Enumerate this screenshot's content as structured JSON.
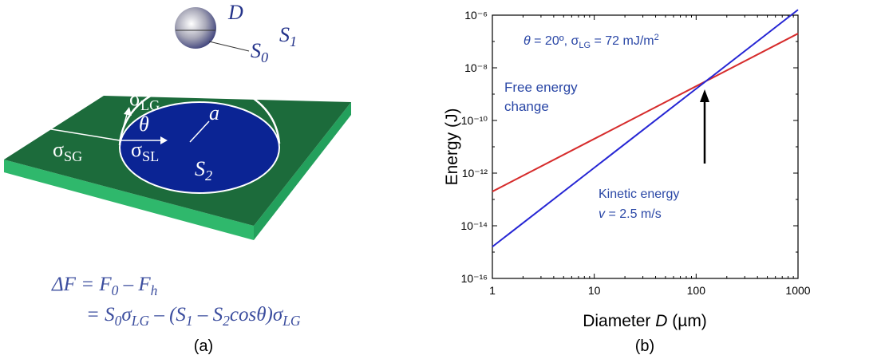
{
  "panel_a": {
    "caption": "(a)",
    "labels": {
      "D": [
        "D"
      ],
      "S0": [
        "S",
        "0"
      ],
      "S1": [
        "S",
        "1"
      ],
      "sigma_LG": [
        "σ",
        "LG"
      ],
      "theta": [
        "θ"
      ],
      "a": [
        "a"
      ],
      "sigma_SG": [
        "σ",
        "SG"
      ],
      "sigma_SL": [
        "σ",
        "SL"
      ],
      "S2": [
        "S",
        "2"
      ]
    },
    "equation": [
      [
        "ΔF = F",
        "0",
        " – F",
        "h"
      ],
      [
        "= S",
        "0",
        "σ",
        "LG",
        " – (S",
        "1",
        " – S",
        "2",
        "cosθ)σ",
        "LG"
      ]
    ]
  },
  "chart_data": {
    "type": "line",
    "caption": "(b)",
    "x_label": [
      "Diameter ",
      "D",
      "  (µm)"
    ],
    "y_label": "Energy  (J)",
    "annotation": [
      "θ",
      " = 20º, σ",
      "LG",
      " = 72 mJ/m",
      "2"
    ],
    "x": [
      1,
      10,
      100,
      1000
    ],
    "series": [
      {
        "name": "Free energy change",
        "color": "#d62c2c",
        "values": [
          2e-13,
          2e-11,
          2e-09,
          2e-07
        ]
      },
      {
        "name": "Kinetic energy",
        "color": "#2626d4",
        "values": [
          1.6e-15,
          1.6e-12,
          1.6e-09,
          1.6e-06
        ],
        "note": [
          "v",
          " = 2.5 m/s"
        ]
      }
    ],
    "xlim": [
      1,
      1000
    ],
    "ylim": [
      1e-16,
      1e-06
    ],
    "log_x": true,
    "log_y": true,
    "xticks": [
      1,
      10,
      100,
      1000
    ],
    "yticks": [
      {
        "value": 1e-16,
        "label": "10⁻¹⁶"
      },
      {
        "value": 1e-14,
        "label": "10⁻¹⁴"
      },
      {
        "value": 1e-12,
        "label": "10⁻¹²"
      },
      {
        "value": 1e-10,
        "label": "10⁻¹⁰"
      },
      {
        "value": 1e-08,
        "label": "10⁻⁸"
      },
      {
        "value": 1e-06,
        "label": "10⁻⁶"
      }
    ],
    "x_minor_ticks": [
      2,
      3,
      4,
      5,
      6,
      7,
      8,
      9,
      20,
      30,
      40,
      50,
      60,
      70,
      80,
      90,
      200,
      300,
      400,
      500,
      600,
      700,
      800,
      900
    ],
    "y_minor_ticks": [
      1e-15,
      1e-13,
      1e-11,
      1e-09,
      1e-07
    ]
  }
}
